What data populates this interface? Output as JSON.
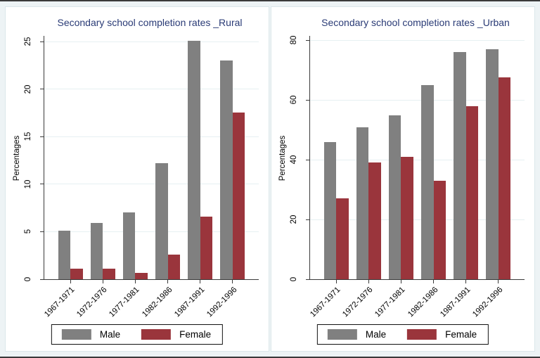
{
  "style": {
    "background": "#edf3f5",
    "title_color": "#2a3b76",
    "grid_color": "#e6f0f2",
    "male_color": "#808080",
    "female_color": "#9a353c"
  },
  "chart_data": [
    {
      "type": "bar",
      "title": "Secondary school completion rates _Rural",
      "ylabel": "Percentages",
      "xlabel": "",
      "categories": [
        "1967-1971",
        "1972-1976",
        "1977-1981",
        "1982-1986",
        "1987-1991",
        "1992-1996"
      ],
      "series": [
        {
          "name": "Male",
          "color": "#808080",
          "values": [
            5.1,
            5.9,
            7.0,
            12.2,
            25.1,
            23.0
          ]
        },
        {
          "name": "Female",
          "color": "#9a353c",
          "values": [
            1.1,
            1.1,
            0.65,
            2.6,
            6.6,
            17.5
          ]
        }
      ],
      "yticks": [
        0,
        5,
        10,
        15,
        20,
        25
      ],
      "ylim": [
        0,
        25.6
      ],
      "grid": true,
      "legend_position": "bottom",
      "xtick_angle": 45
    },
    {
      "type": "bar",
      "title": "Secondary school completion rates _Urban",
      "ylabel": "Percentages",
      "xlabel": "",
      "categories": [
        "1967-1971",
        "1972-1976",
        "1977-1981",
        "1982-1986",
        "1987-1991",
        "1992-1996"
      ],
      "series": [
        {
          "name": "Male",
          "color": "#808080",
          "values": [
            46,
            51,
            55,
            65,
            76,
            77
          ]
        },
        {
          "name": "Female",
          "color": "#9a353c",
          "values": [
            27,
            39,
            41,
            33,
            58,
            67.5
          ]
        }
      ],
      "yticks": [
        0,
        20,
        40,
        60,
        80
      ],
      "ylim": [
        0,
        81.5
      ],
      "grid": true,
      "legend_position": "bottom",
      "xtick_angle": 45
    }
  ]
}
